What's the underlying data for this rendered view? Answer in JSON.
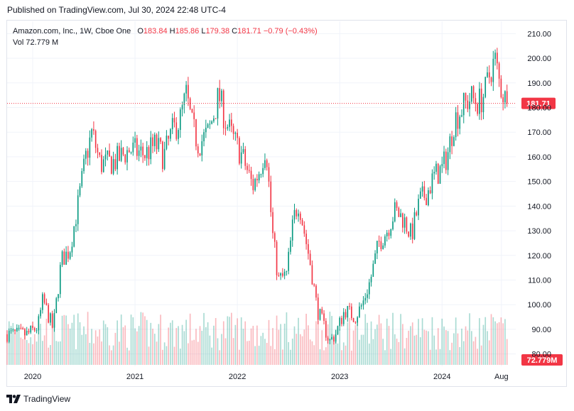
{
  "published_text": "Published on TradingView.com, Jul 30, 2024 22:48 UTC-4",
  "legend": {
    "symbol": "Amazon.com, Inc., 1W, Cboe One",
    "o_label": "O",
    "o_value": "183.84",
    "h_label": "H",
    "h_value": "185.86",
    "l_label": "L",
    "l_value": "179.38",
    "c_label": "C",
    "c_value": "181.71",
    "change": "−0.79 (−0.43%)"
  },
  "vol_legend": {
    "label": "Vol",
    "value": "72.779 M"
  },
  "footer": {
    "brand": "TradingView",
    "logo_icon": "tradingview-logo-icon"
  },
  "colors": {
    "up": "#089981",
    "down": "#f23645",
    "grid": "#f0f3fa",
    "text": "#131722"
  },
  "chart_data": {
    "type": "candlestick",
    "title": "Amazon.com, Inc., 1W, Cboe One",
    "interval": "1W",
    "ylim": [
      75,
      215
    ],
    "y_ticks": [
      "210.00",
      "200.00",
      "190.00",
      "180.00",
      "170.00",
      "160.00",
      "150.00",
      "140.00",
      "130.00",
      "120.00",
      "110.00",
      "100.00",
      "90.00",
      "80.00"
    ],
    "x_start": 2019.75,
    "x_end": 2024.72,
    "x_ticks": [
      {
        "label": "2020",
        "t": 2020.0
      },
      {
        "label": "2021",
        "t": 2021.0
      },
      {
        "label": "2022",
        "t": 2022.0
      },
      {
        "label": "2023",
        "t": 2023.0
      },
      {
        "label": "2024",
        "t": 2024.0
      },
      {
        "label": "Aug",
        "t": 2024.58
      }
    ],
    "last_price": 181.71,
    "last_price_label": "181.71",
    "last_volume_label": "72.779M",
    "volume_max_millions": 180,
    "price_anchors": [
      [
        2019.75,
        88
      ],
      [
        2019.95,
        88
      ],
      [
        2020.05,
        91
      ],
      [
        2020.1,
        102
      ],
      [
        2020.2,
        90
      ],
      [
        2020.28,
        118
      ],
      [
        2020.36,
        122
      ],
      [
        2020.44,
        140
      ],
      [
        2020.52,
        160
      ],
      [
        2020.58,
        170
      ],
      [
        2020.66,
        157
      ],
      [
        2020.8,
        158
      ],
      [
        2020.95,
        163
      ],
      [
        2021.1,
        161
      ],
      [
        2021.2,
        165
      ],
      [
        2021.28,
        160
      ],
      [
        2021.36,
        170
      ],
      [
        2021.44,
        175
      ],
      [
        2021.5,
        185
      ],
      [
        2021.56,
        172
      ],
      [
        2021.62,
        165
      ],
      [
        2021.72,
        170
      ],
      [
        2021.82,
        185
      ],
      [
        2021.88,
        175
      ],
      [
        2021.95,
        168
      ],
      [
        2022.05,
        160
      ],
      [
        2022.15,
        148
      ],
      [
        2022.22,
        155
      ],
      [
        2022.28,
        165
      ],
      [
        2022.34,
        130
      ],
      [
        2022.4,
        110
      ],
      [
        2022.48,
        112
      ],
      [
        2022.55,
        135
      ],
      [
        2022.6,
        142
      ],
      [
        2022.66,
        128
      ],
      [
        2022.72,
        115
      ],
      [
        2022.78,
        98
      ],
      [
        2022.84,
        92
      ],
      [
        2022.9,
        85
      ],
      [
        2022.96,
        88
      ],
      [
        2023.05,
        98
      ],
      [
        2023.15,
        95
      ],
      [
        2023.22,
        100
      ],
      [
        2023.3,
        110
      ],
      [
        2023.38,
        125
      ],
      [
        2023.46,
        130
      ],
      [
        2023.54,
        138
      ],
      [
        2023.62,
        135
      ],
      [
        2023.7,
        128
      ],
      [
        2023.78,
        142
      ],
      [
        2023.86,
        146
      ],
      [
        2023.92,
        152
      ],
      [
        2024.0,
        155
      ],
      [
        2024.06,
        162
      ],
      [
        2024.12,
        175
      ],
      [
        2024.2,
        180
      ],
      [
        2024.28,
        184
      ],
      [
        2024.36,
        182
      ],
      [
        2024.42,
        186
      ],
      [
        2024.48,
        196
      ],
      [
        2024.52,
        199
      ],
      [
        2024.56,
        190
      ],
      [
        2024.62,
        183
      ],
      [
        2024.645,
        181.71
      ]
    ]
  }
}
